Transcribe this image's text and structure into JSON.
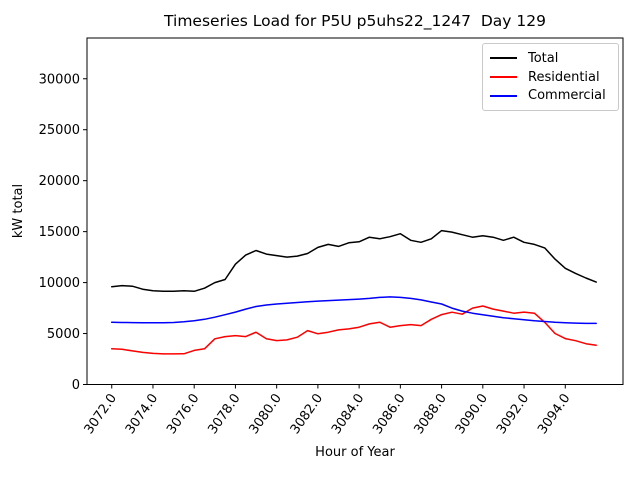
{
  "colors": {
    "background": "#ffffff",
    "axes": "#000000",
    "legend_border": "#c9c9c9",
    "total_line": "#000000",
    "residential_line": "#ff0000",
    "commercial_line": "#0000ff"
  },
  "chart_data": {
    "type": "line",
    "title": "Timeseries Load for P5U p5uhs22_1247  Day 129",
    "xlabel": "Hour of Year",
    "ylabel": "kW total",
    "xlim": [
      3070.8,
      3096.8
    ],
    "ylim": [
      0,
      34000
    ],
    "grid": false,
    "legend_position": "upper right",
    "xticks": [
      3072,
      3074,
      3076,
      3078,
      3080,
      3082,
      3084,
      3086,
      3088,
      3090,
      3092,
      3094
    ],
    "xtick_labels": [
      "3072.0",
      "3074.0",
      "3076.0",
      "3078.0",
      "3080.0",
      "3082.0",
      "3084.0",
      "3086.0",
      "3088.0",
      "3090.0",
      "3092.0",
      "3094.0"
    ],
    "yticks": [
      0,
      5000,
      10000,
      15000,
      20000,
      25000,
      30000
    ],
    "ytick_labels": [
      "0",
      "5000",
      "10000",
      "15000",
      "20000",
      "25000",
      "30000"
    ],
    "x": [
      3072.0,
      3072.5,
      3073.0,
      3073.5,
      3074.0,
      3074.5,
      3075.0,
      3075.5,
      3076.0,
      3076.5,
      3077.0,
      3077.5,
      3078.0,
      3078.5,
      3079.0,
      3079.5,
      3080.0,
      3080.5,
      3081.0,
      3081.5,
      3082.0,
      3082.5,
      3083.0,
      3083.5,
      3084.0,
      3084.5,
      3085.0,
      3085.5,
      3086.0,
      3086.5,
      3087.0,
      3087.5,
      3088.0,
      3088.5,
      3089.0,
      3089.5,
      3090.0,
      3090.5,
      3091.0,
      3091.5,
      3092.0,
      3092.5,
      3093.0,
      3093.5,
      3094.0,
      3094.5,
      3095.0,
      3095.5
    ],
    "series": [
      {
        "name": "Total",
        "color": "#000000",
        "values": [
          9600,
          9700,
          9650,
          9350,
          9200,
          9150,
          9150,
          9200,
          9150,
          9450,
          10000,
          10300,
          11800,
          12700,
          13150,
          12800,
          12650,
          12500,
          12600,
          12850,
          13450,
          13750,
          13550,
          13900,
          14000,
          14450,
          14300,
          14500,
          14800,
          14150,
          13950,
          14300,
          15100,
          14950,
          14700,
          14450,
          14600,
          14450,
          14150,
          14450,
          13950,
          13750,
          13400,
          12300,
          11400,
          10900,
          10450,
          10050
        ]
      },
      {
        "name": "Residential",
        "color": "#ff0000",
        "values": [
          3500,
          3450,
          3300,
          3150,
          3050,
          3000,
          3000,
          3010,
          3350,
          3500,
          4480,
          4700,
          4800,
          4700,
          5130,
          4480,
          4310,
          4380,
          4640,
          5290,
          4970,
          5130,
          5360,
          5460,
          5620,
          5950,
          6110,
          5620,
          5780,
          5880,
          5780,
          6400,
          6860,
          7090,
          6900,
          7500,
          7700,
          7400,
          7200,
          7000,
          7100,
          7000,
          6100,
          5000,
          4500,
          4300,
          4000,
          3850
        ]
      },
      {
        "name": "Commercial",
        "color": "#0000ff",
        "values": [
          6100,
          6080,
          6070,
          6060,
          6050,
          6060,
          6080,
          6150,
          6250,
          6400,
          6600,
          6850,
          7100,
          7400,
          7650,
          7800,
          7900,
          7980,
          8050,
          8120,
          8180,
          8230,
          8280,
          8330,
          8380,
          8450,
          8550,
          8600,
          8550,
          8450,
          8300,
          8100,
          7900,
          7500,
          7200,
          7000,
          6850,
          6700,
          6550,
          6450,
          6350,
          6250,
          6180,
          6100,
          6050,
          6020,
          6000,
          6000
        ]
      }
    ]
  }
}
